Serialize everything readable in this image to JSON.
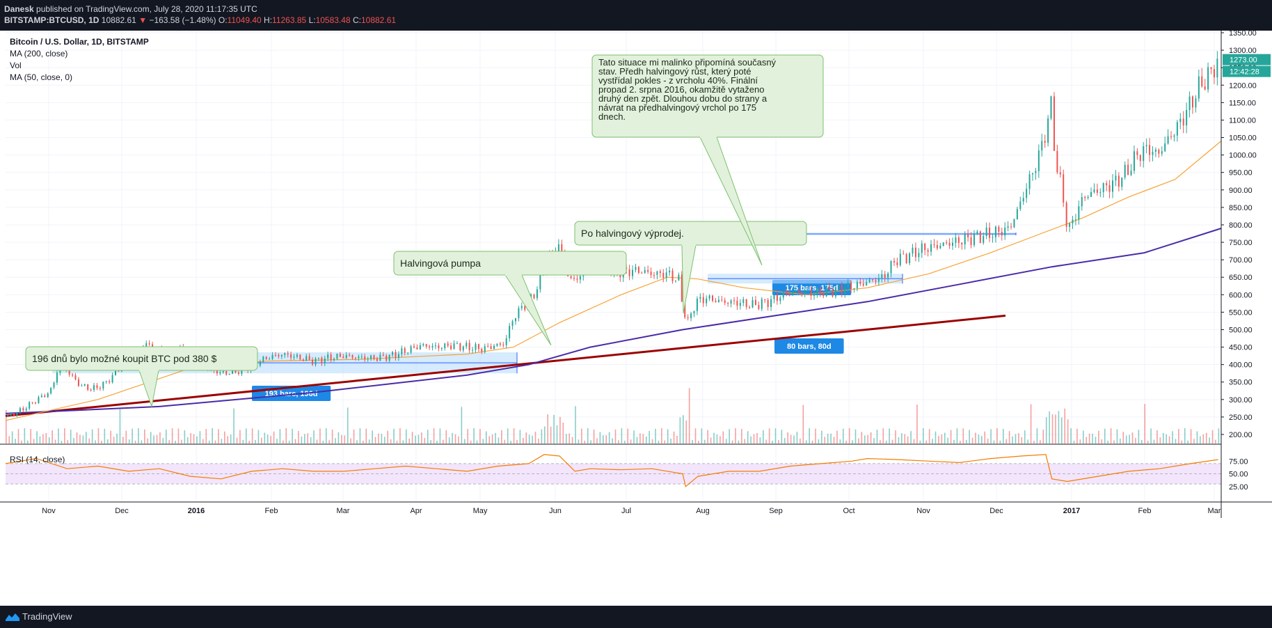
{
  "header": {
    "author": "Danesk",
    "published_text": "published on TradingView.com, July 28, 2020 11:17:35 UTC",
    "symbol": "BITSTAMP:BTCUSD, 1D",
    "last": "10882.61",
    "change_arrow": "▼",
    "change": "−163.58 (−1.48%)",
    "o_label": "O:",
    "o_value": "11049.40",
    "h_label": "H:",
    "h_value": "11263.85",
    "l_label": "L:",
    "l_value": "10583.48",
    "c_label": "C:",
    "c_value": "10882.61"
  },
  "legend": {
    "title": "Bitcoin / U.S. Dollar, 1D, BITSTAMP",
    "ma200": "MA (200, close)",
    "vol": "Vol",
    "ma50": "MA (50, close, 0)",
    "rsi": "RSI (14, close)"
  },
  "footer": {
    "brand": "TradingView"
  },
  "price_badges": {
    "last": "1273.00",
    "countdown": "12:42:28"
  },
  "annotations": {
    "callout_1": "196 dnů bylo možné koupit BTC pod 380 $",
    "callout_2": "Halvingová pumpa",
    "callout_3": "Po halvingový výprodej.",
    "callout_4_lines": [
      "Tato situace mi malinko připomíná současný",
      "stav. Předh halvingový růst, který poté",
      "vystřídal pokles - z vrcholu 40%. Finální",
      "propad 2. srpna 2016, okamžitě vytaženo",
      "druhý den zpět. Dlouhou dobu do strany a",
      "návrat na předhalvingový vrchol po 175",
      "dnech."
    ],
    "range_1": "193 bars, 196d",
    "range_2": "175 bars, 175d",
    "range_3": "80 bars, 80d"
  },
  "colors": {
    "up": "#26a69a",
    "down": "#ef5350",
    "ma200": "#4a2aa8",
    "ma50": "#f7a234",
    "trendline": "#9b0000",
    "rsi": "#f57c00",
    "rsi_band": "#f3e5fb",
    "callout_fill": "#e2f1dc",
    "callout_border": "#7bc16b",
    "range": "#2962ff",
    "badge": "#1e88e5"
  },
  "chart_data": {
    "type": "candlestick",
    "y_axis": {
      "min": 200,
      "max": 1350,
      "ticks": [
        200,
        250,
        300,
        350,
        400,
        450,
        500,
        550,
        600,
        650,
        700,
        750,
        800,
        850,
        900,
        950,
        1000,
        1050,
        1100,
        1150,
        1200,
        1250,
        1300,
        1350
      ]
    },
    "x_axis": {
      "labels": [
        "Nov",
        "Dec",
        "2016",
        "Feb",
        "Mar",
        "Apr",
        "May",
        "Jun",
        "Jul",
        "Aug",
        "Sep",
        "Oct",
        "Nov",
        "Dec",
        "2017",
        "Feb",
        "Mar"
      ]
    },
    "rsi_axis": {
      "ticks": [
        25.0,
        50.0,
        75.0
      ],
      "band": [
        30,
        70
      ]
    },
    "price_path": [
      [
        0,
        250
      ],
      [
        10,
        270
      ],
      [
        20,
        300
      ],
      [
        28,
        320
      ],
      [
        32,
        360
      ],
      [
        35,
        420
      ],
      [
        40,
        380
      ],
      [
        48,
        340
      ],
      [
        56,
        330
      ],
      [
        64,
        345
      ],
      [
        72,
        380
      ],
      [
        78,
        420
      ],
      [
        84,
        440
      ],
      [
        90,
        460
      ],
      [
        98,
        440
      ],
      [
        106,
        430
      ],
      [
        112,
        445
      ],
      [
        118,
        440
      ],
      [
        124,
        415
      ],
      [
        130,
        390
      ],
      [
        140,
        375
      ],
      [
        150,
        380
      ],
      [
        160,
        400
      ],
      [
        170,
        420
      ],
      [
        180,
        430
      ],
      [
        190,
        420
      ],
      [
        200,
        410
      ],
      [
        210,
        420
      ],
      [
        220,
        425
      ],
      [
        230,
        420
      ],
      [
        240,
        418
      ],
      [
        250,
        425
      ],
      [
        260,
        440
      ],
      [
        270,
        455
      ],
      [
        280,
        450
      ],
      [
        290,
        455
      ],
      [
        300,
        450
      ],
      [
        310,
        445
      ],
      [
        318,
        455
      ],
      [
        324,
        460
      ],
      [
        328,
        520
      ],
      [
        334,
        560
      ],
      [
        340,
        580
      ],
      [
        345,
        620
      ],
      [
        350,
        690
      ],
      [
        355,
        720
      ],
      [
        358,
        750
      ],
      [
        362,
        700
      ],
      [
        366,
        640
      ],
      [
        372,
        650
      ],
      [
        378,
        680
      ],
      [
        385,
        690
      ],
      [
        392,
        670
      ],
      [
        400,
        665
      ],
      [
        410,
        670
      ],
      [
        420,
        660
      ],
      [
        430,
        660
      ],
      [
        437,
        640
      ],
      [
        440,
        560
      ],
      [
        443,
        520
      ],
      [
        448,
        580
      ],
      [
        455,
        590
      ],
      [
        465,
        580
      ],
      [
        475,
        578
      ],
      [
        485,
        570
      ],
      [
        495,
        580
      ],
      [
        505,
        600
      ],
      [
        515,
        610
      ],
      [
        525,
        605
      ],
      [
        535,
        610
      ],
      [
        545,
        620
      ],
      [
        555,
        630
      ],
      [
        562,
        640
      ],
      [
        570,
        650
      ],
      [
        578,
        700
      ],
      [
        585,
        710
      ],
      [
        595,
        730
      ],
      [
        605,
        740
      ],
      [
        615,
        750
      ],
      [
        625,
        760
      ],
      [
        635,
        770
      ],
      [
        645,
        780
      ],
      [
        652,
        790
      ],
      [
        658,
        850
      ],
      [
        664,
        920
      ],
      [
        668,
        960
      ],
      [
        672,
        1010
      ],
      [
        676,
        1080
      ],
      [
        679,
        1140
      ],
      [
        682,
        980
      ],
      [
        686,
        900
      ],
      [
        690,
        780
      ],
      [
        694,
        820
      ],
      [
        700,
        880
      ],
      [
        710,
        900
      ],
      [
        720,
        920
      ],
      [
        728,
        950
      ],
      [
        735,
        1000
      ],
      [
        742,
        1020
      ],
      [
        748,
        1000
      ],
      [
        756,
        1050
      ],
      [
        764,
        1100
      ],
      [
        770,
        1150
      ],
      [
        776,
        1200
      ],
      [
        782,
        1230
      ],
      [
        788,
        1273
      ]
    ],
    "ma50_path": [
      [
        0,
        240
      ],
      [
        60,
        300
      ],
      [
        120,
        390
      ],
      [
        170,
        410
      ],
      [
        230,
        415
      ],
      [
        300,
        430
      ],
      [
        330,
        450
      ],
      [
        360,
        520
      ],
      [
        400,
        600
      ],
      [
        430,
        650
      ],
      [
        450,
        645
      ],
      [
        480,
        620
      ],
      [
        520,
        600
      ],
      [
        560,
        620
      ],
      [
        600,
        660
      ],
      [
        640,
        720
      ],
      [
        670,
        770
      ],
      [
        700,
        820
      ],
      [
        730,
        880
      ],
      [
        760,
        930
      ],
      [
        790,
        1040
      ]
    ],
    "ma200_path": [
      [
        0,
        260
      ],
      [
        100,
        280
      ],
      [
        200,
        320
      ],
      [
        300,
        370
      ],
      [
        340,
        400
      ],
      [
        380,
        450
      ],
      [
        440,
        500
      ],
      [
        500,
        540
      ],
      [
        560,
        580
      ],
      [
        620,
        630
      ],
      [
        680,
        680
      ],
      [
        740,
        720
      ],
      [
        790,
        790
      ]
    ],
    "rsi_path": [
      [
        0,
        70
      ],
      [
        20,
        80
      ],
      [
        40,
        60
      ],
      [
        60,
        65
      ],
      [
        80,
        55
      ],
      [
        100,
        60
      ],
      [
        120,
        45
      ],
      [
        140,
        40
      ],
      [
        160,
        55
      ],
      [
        180,
        60
      ],
      [
        200,
        55
      ],
      [
        220,
        55
      ],
      [
        240,
        60
      ],
      [
        260,
        65
      ],
      [
        280,
        60
      ],
      [
        300,
        55
      ],
      [
        320,
        65
      ],
      [
        340,
        70
      ],
      [
        350,
        88
      ],
      [
        360,
        85
      ],
      [
        370,
        55
      ],
      [
        380,
        60
      ],
      [
        400,
        58
      ],
      [
        420,
        60
      ],
      [
        440,
        50
      ],
      [
        442,
        25
      ],
      [
        450,
        45
      ],
      [
        470,
        55
      ],
      [
        490,
        55
      ],
      [
        510,
        65
      ],
      [
        530,
        70
      ],
      [
        550,
        75
      ],
      [
        560,
        80
      ],
      [
        580,
        78
      ],
      [
        600,
        75
      ],
      [
        620,
        72
      ],
      [
        640,
        80
      ],
      [
        660,
        85
      ],
      [
        676,
        88
      ],
      [
        680,
        40
      ],
      [
        690,
        35
      ],
      [
        710,
        45
      ],
      [
        730,
        55
      ],
      [
        750,
        60
      ],
      [
        770,
        70
      ],
      [
        788,
        78
      ]
    ],
    "trendline": [
      [
        0,
        253
      ],
      [
        640,
        540
      ]
    ]
  }
}
